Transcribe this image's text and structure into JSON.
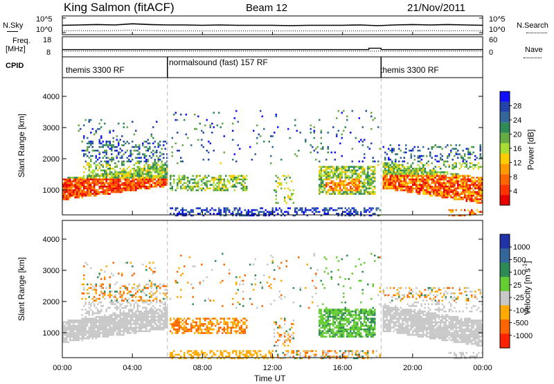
{
  "header": {
    "title": "King Salmon (fitACF)",
    "beam": "Beam 12",
    "date": "21/Nov/2011"
  },
  "side_labels": {
    "nsky": "N.Sky",
    "freq_line1": "Freq.",
    "freq_line2": "[MHz]",
    "cpid": "CPID",
    "nsearch": "N.Search",
    "nave": "Nave"
  },
  "cpid_segments": [
    {
      "label": "themis 3300 RF",
      "start": 0.0,
      "end": 6.0
    },
    {
      "label": "normalsound (fast) 157 RF",
      "start": 6.0,
      "end": 18.2
    },
    {
      "label": "themis 3300 RF",
      "start": 18.2,
      "end": 24.0
    }
  ],
  "chart_data": [
    {
      "type": "line",
      "panel": "noise",
      "left_ticks": [
        "10^5",
        "10^0"
      ],
      "right_ticks": [
        "10^5",
        "10^0"
      ],
      "series": [
        {
          "name": "N.Sky",
          "style": "solid",
          "x": [
            0,
            1,
            2,
            3,
            4,
            5,
            6,
            7,
            8,
            9,
            10,
            11,
            12,
            13,
            14,
            15,
            16,
            17,
            18,
            19,
            20,
            21,
            22,
            23,
            24
          ],
          "y": [
            2.5,
            2.6,
            2.7,
            2.6,
            2.9,
            2.7,
            2.6,
            2.6,
            2.5,
            2.6,
            2.5,
            2.5,
            2.5,
            2.4,
            2.5,
            2.5,
            2.5,
            2.6,
            2.4,
            2.6,
            2.7,
            2.6,
            2.7,
            2.6,
            2.5
          ]
        },
        {
          "name": "N.Search",
          "style": "dotted",
          "x": [
            0,
            1,
            2,
            3,
            4,
            5,
            6,
            7,
            8,
            9,
            10,
            11,
            12,
            13,
            14,
            15,
            16,
            17,
            18,
            19,
            20,
            21,
            22,
            23,
            24
          ],
          "y": [
            1.0,
            1.1,
            1.0,
            1.1,
            1.2,
            1.1,
            1.0,
            1.0,
            1.0,
            1.0,
            1.0,
            1.0,
            1.0,
            1.0,
            1.0,
            1.0,
            1.0,
            1.0,
            1.0,
            1.1,
            1.0,
            1.1,
            1.0,
            1.1,
            1.0
          ]
        }
      ]
    },
    {
      "type": "line",
      "panel": "frequency",
      "left_ticks": [
        "18",
        "8"
      ],
      "right_ticks": [
        "60",
        "0"
      ],
      "series": [
        {
          "name": "Freq.",
          "style": "solid",
          "x": [
            0,
            6,
            6,
            13,
            13,
            17.5,
            17.5,
            18.2,
            18.2,
            24
          ],
          "y": [
            11,
            11,
            11,
            11,
            11,
            11,
            12,
            12,
            11,
            11
          ]
        },
        {
          "name": "Nave",
          "style": "dotted",
          "x": [
            0,
            24
          ],
          "y": [
            10,
            10
          ]
        }
      ]
    },
    {
      "type": "heatmap",
      "panel": "power",
      "ylabel": "Slant Range [km]",
      "yticks": [
        "1000",
        "2000",
        "3000",
        "4000"
      ],
      "ylim": [
        200,
        4600
      ],
      "xlim": [
        0,
        24
      ],
      "colorbar": {
        "label": "Power [dB]",
        "ticks": [
          "4",
          "8",
          "12",
          "16",
          "20",
          "24",
          "28"
        ],
        "colors": [
          "#1010ff",
          "#2244aa",
          "#336699",
          "#2e8b57",
          "#66aa44",
          "#aadd33",
          "#ffcc00",
          "#ff9900",
          "#ff6600",
          "#ff3300",
          "#e60000"
        ]
      }
    },
    {
      "type": "heatmap",
      "panel": "velocity",
      "ylabel": "Slant Range [km]",
      "yticks": [
        "1000",
        "2000",
        "3000",
        "4000"
      ],
      "ylim": [
        200,
        4600
      ],
      "xlim": [
        0,
        24
      ],
      "xlabel": "Time UT",
      "xticks": [
        "00:00",
        "04:00",
        "08:00",
        "12:00",
        "16:00",
        "20:00",
        "00:00"
      ],
      "colorbar": {
        "label": "Velocity [m s",
        "label_sup": "-1",
        "label_end": "]",
        "ticks": [
          "1000",
          "500",
          "100",
          "25",
          "-25",
          "-100",
          "-500",
          "-1000"
        ],
        "colors": [
          "#2233aa",
          "#336699",
          "#2e8b57",
          "#66cc33",
          "#c8c8c8",
          "#ffaa00",
          "#ff6600",
          "#ff2200"
        ]
      }
    }
  ]
}
